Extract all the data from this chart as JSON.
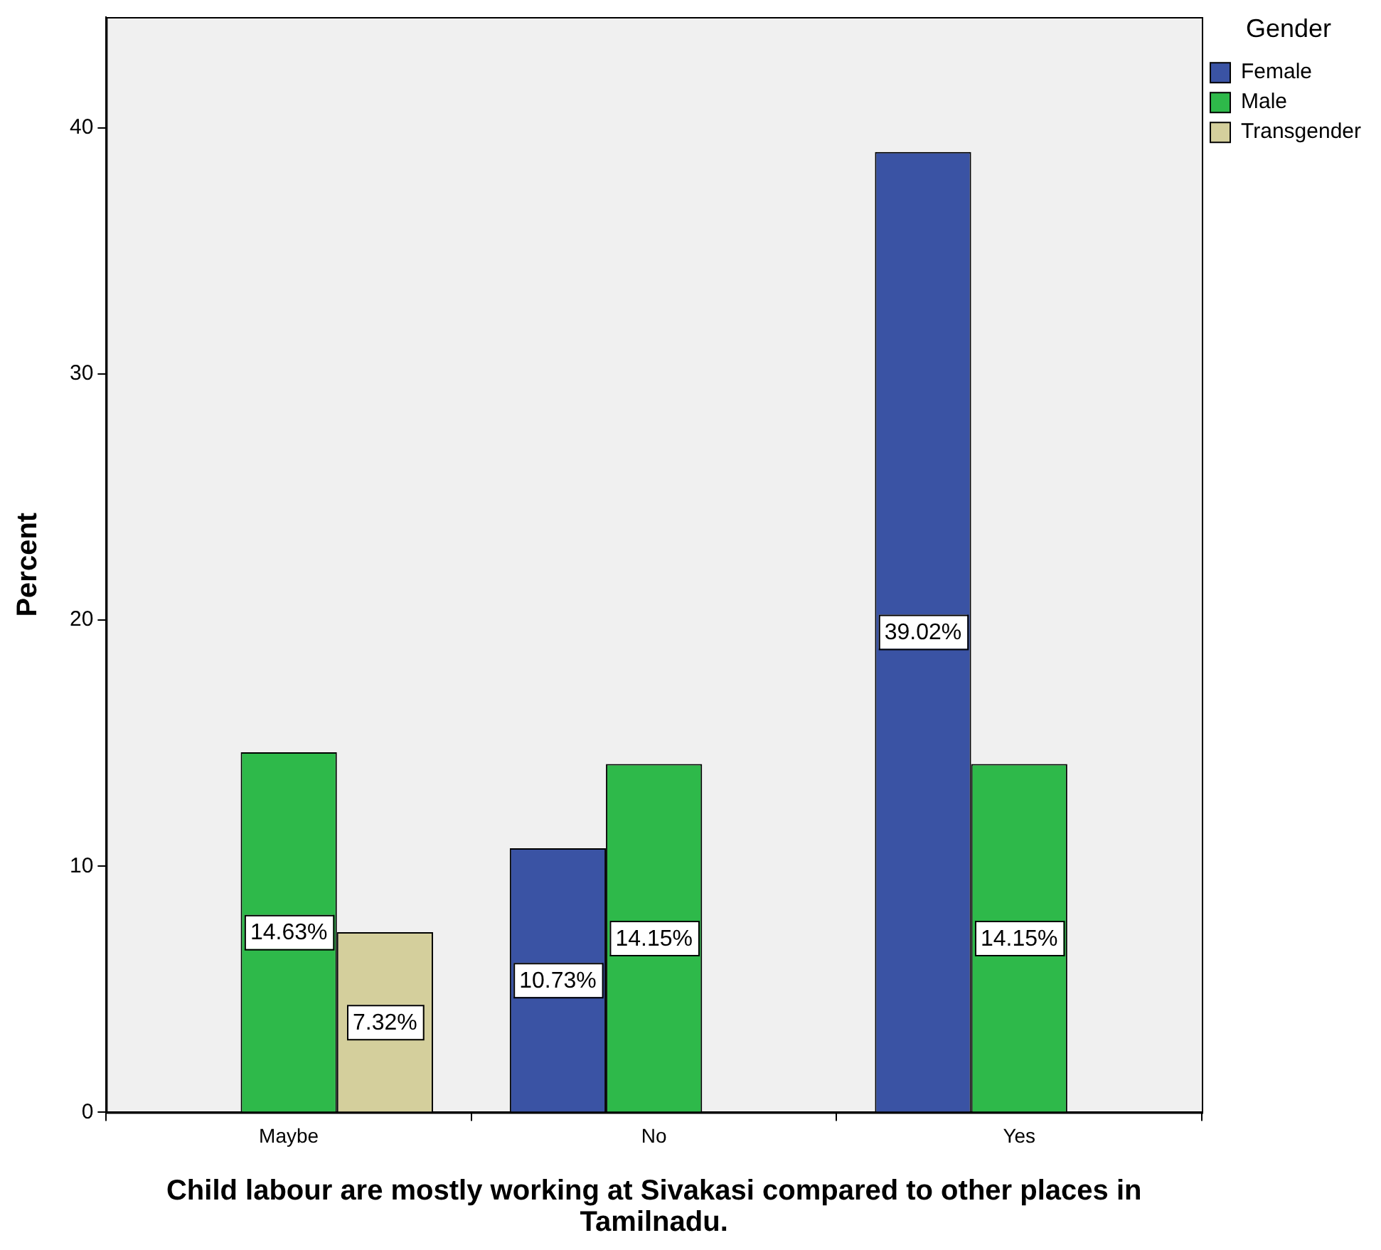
{
  "chart_data": {
    "type": "bar",
    "xlabel": "Child labour are mostly working at Sivakasi compared to other places in Tamilnadu.",
    "ylabel": "Percent",
    "legend_title": "Gender",
    "legend": "top right",
    "grid": false,
    "categories": [
      "Maybe",
      "No",
      "Yes"
    ],
    "ylim": [
      0,
      44.5
    ],
    "yticks": [
      0,
      10,
      20,
      30,
      40
    ],
    "series": [
      {
        "name": "Female",
        "color": "#3a53a4",
        "values": [
          null,
          10.73,
          39.02
        ],
        "value_labels": [
          null,
          "10.73%",
          "39.02%"
        ]
      },
      {
        "name": "Male",
        "color": "#2eb94a",
        "values": [
          14.63,
          14.15,
          14.15
        ],
        "value_labels": [
          "14.63%",
          "14.15%",
          "14.15%"
        ]
      },
      {
        "name": "Transgender",
        "color": "#d4cf9c",
        "values": [
          7.32,
          null,
          null
        ],
        "value_labels": [
          "7.32%",
          null,
          null
        ]
      }
    ]
  }
}
